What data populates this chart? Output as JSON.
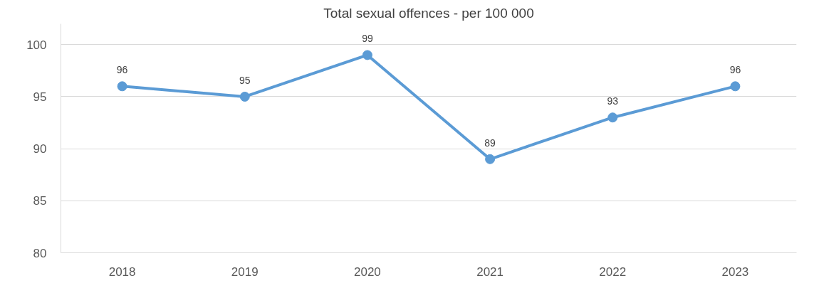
{
  "chart_data": {
    "type": "line",
    "title": "Total sexual offences - per 100 000",
    "categories": [
      "2018",
      "2019",
      "2020",
      "2021",
      "2022",
      "2023"
    ],
    "series": [
      {
        "color": "#5b9bd5",
        "values": [
          96,
          95,
          99,
          89,
          93,
          96
        ]
      }
    ],
    "ylim": [
      80,
      102
    ],
    "yticks": [
      80,
      85,
      90,
      95,
      100
    ],
    "grid": "y",
    "marker": "circle",
    "line_style": "solid",
    "data_labels": true
  }
}
